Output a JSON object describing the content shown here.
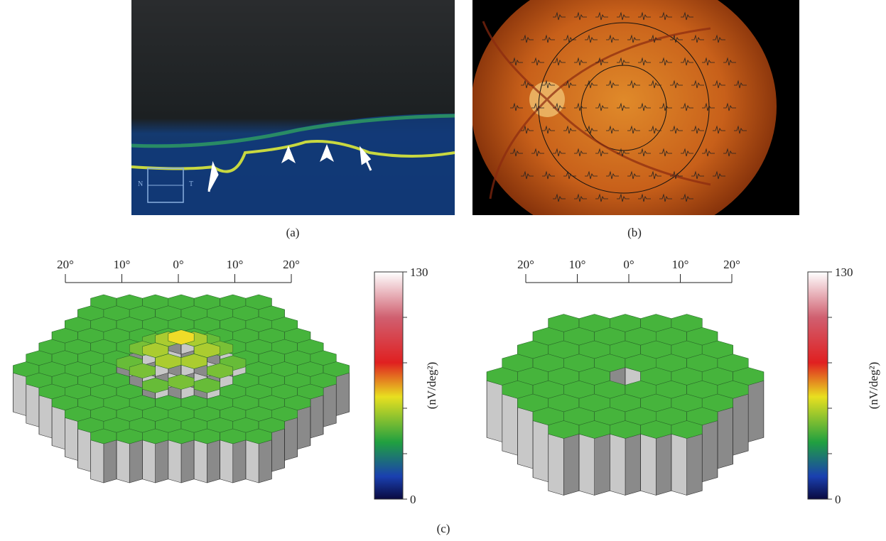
{
  "panel_a": {
    "label": "(a)",
    "image_text": [
      "N",
      "T"
    ]
  },
  "panel_b": {
    "label": "(b)"
  },
  "panel_c": {
    "label": "(c)",
    "plots": [
      {
        "scale_ticks": [
          "20°",
          "10°",
          "0°",
          "10°",
          "20°"
        ],
        "colorbar_max": 130,
        "colorbar_min": 0,
        "colorbar_unit": "(nV/deg²)"
      },
      {
        "scale_ticks": [
          "20°",
          "10°",
          "0°",
          "10°",
          "20°"
        ],
        "colorbar_max": 130,
        "colorbar_min": 0,
        "colorbar_unit": "(nV/deg²)"
      }
    ]
  }
}
